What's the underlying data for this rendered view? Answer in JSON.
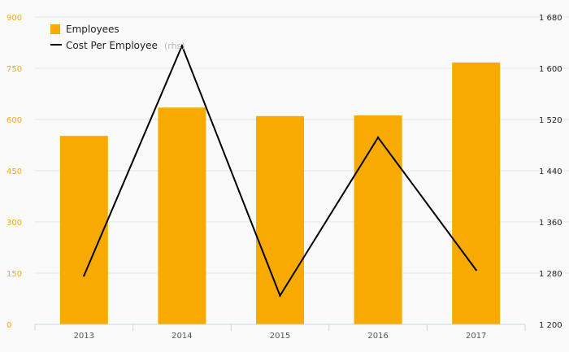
{
  "chart_data": {
    "type": "bar+line",
    "categories": [
      "2013",
      "2014",
      "2015",
      "2016",
      "2017"
    ],
    "series": [
      {
        "name": "Employees",
        "type": "bar",
        "axis": "left",
        "color": "#f7ab00",
        "values": [
          552,
          635,
          610,
          612,
          767
        ]
      },
      {
        "name": "Cost Per Employee",
        "name_suffix": "(rhs)",
        "type": "line",
        "axis": "right",
        "color": "#000000",
        "values": [
          1276,
          1635,
          1245,
          1492,
          1285
        ]
      }
    ],
    "y_left": {
      "min": 0,
      "max": 900,
      "ticks": [
        0,
        150,
        300,
        450,
        600,
        750,
        900
      ],
      "tick_labels": [
        "0",
        "150",
        "300",
        "450",
        "600",
        "750",
        "900"
      ],
      "color": "#f5ad00"
    },
    "y_right": {
      "min": 1200,
      "max": 1680,
      "ticks": [
        1200,
        1280,
        1360,
        1440,
        1520,
        1600,
        1680
      ],
      "tick_labels": [
        "1 200",
        "1 280",
        "1 360",
        "1 440",
        "1 520",
        "1 600",
        "1 680"
      ],
      "color": "#222222"
    },
    "grid": true,
    "legend_position": "top-left"
  }
}
